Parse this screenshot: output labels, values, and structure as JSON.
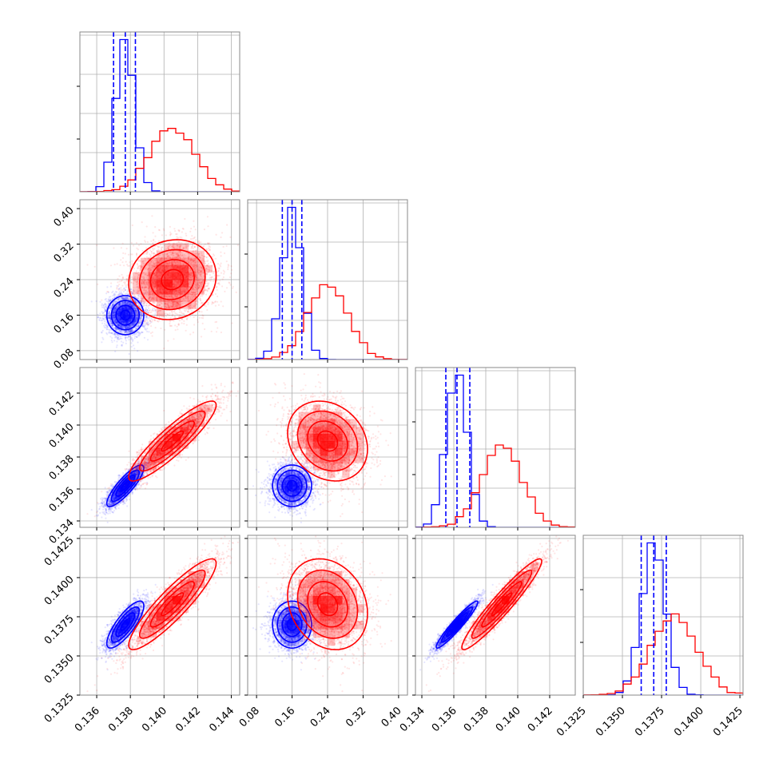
{
  "chart_data": {
    "type": "corner",
    "description_free": true,
    "colors": {
      "blue": "#0000ff",
      "red": "#ff0000",
      "grid": "#b0b0b0",
      "frame": "#888888"
    },
    "parameters": [
      {
        "range": [
          0.135,
          0.1445
        ],
        "ticks": [
          0.136,
          0.138,
          0.14,
          0.142,
          0.144
        ],
        "tick_labels": [
          "0.136",
          "0.138",
          "0.140",
          "0.142",
          "0.144"
        ]
      },
      {
        "range": [
          0.06,
          0.42
        ],
        "ticks": [
          0.08,
          0.16,
          0.24,
          0.32,
          0.4
        ],
        "tick_labels": [
          "0.08",
          "0.16",
          "0.24",
          "0.32",
          "0.40"
        ]
      },
      {
        "range": [
          0.1336,
          0.1436
        ],
        "ticks": [
          0.134,
          0.136,
          0.138,
          0.14,
          0.142
        ],
        "tick_labels": [
          "0.134",
          "0.136",
          "0.138",
          "0.140",
          "0.142"
        ]
      },
      {
        "range": [
          0.1325,
          0.1427
        ],
        "ticks": [
          0.1325,
          0.135,
          0.1375,
          0.14,
          0.1425
        ],
        "tick_labels": [
          "0.1325",
          "0.1350",
          "0.1375",
          "0.1400",
          "0.1425"
        ]
      }
    ],
    "series": [
      {
        "color": "#0000ff",
        "mean": [
          0.1377,
          0.16,
          0.1362,
          0.137
        ],
        "std": [
          0.00055,
          0.022,
          0.00065,
          0.00075
        ],
        "corr": [
          [
            1,
            0.0,
            0.85,
            0.8
          ],
          [
            0.0,
            1,
            0.0,
            0.0
          ],
          [
            0.85,
            0.0,
            1,
            0.95
          ],
          [
            0.8,
            0.0,
            0.95,
            1
          ]
        ],
        "quantiles": [
          [
            0.137,
            0.1377,
            0.1383
          ],
          [
            0.138,
            0.16,
            0.182
          ],
          [
            0.1355,
            0.1362,
            0.137
          ],
          [
            0.1362,
            0.137,
            0.1378
          ]
        ]
      },
      {
        "color": "#ff0000",
        "mean": [
          0.1405,
          0.24,
          0.139,
          0.1383
        ],
        "std": [
          0.0013,
          0.045,
          0.00125,
          0.00145
        ],
        "corr": [
          [
            1,
            0.1,
            0.9,
            0.9
          ],
          [
            0.1,
            1,
            -0.2,
            -0.2
          ],
          [
            0.9,
            -0.2,
            1,
            0.95
          ],
          [
            0.9,
            -0.2,
            0.95,
            1
          ]
        ]
      }
    ]
  }
}
